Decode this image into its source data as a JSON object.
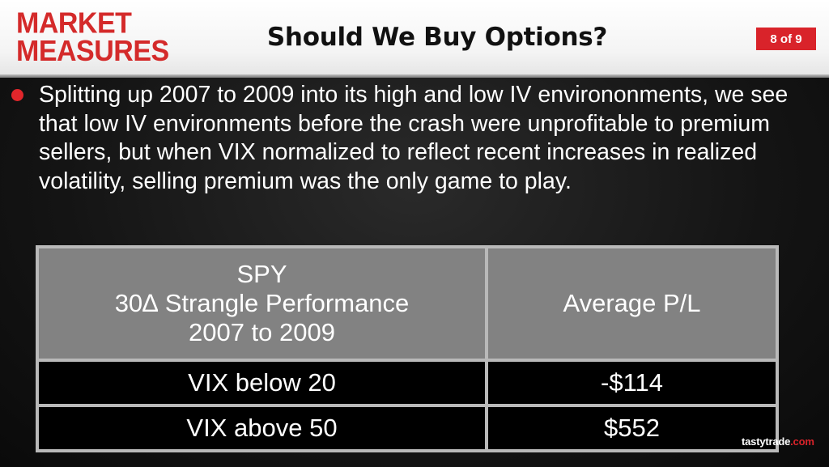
{
  "header": {
    "logo_line1": "MARKET",
    "logo_line2": "MEASURES",
    "title": "Should We Buy Options?",
    "page_indicator": "8 of 9"
  },
  "body": {
    "bullet_text": "Splitting up 2007 to 2009 into its high and low IV environonments, we see that low IV environments before the crash were unprofitable to premium sellers, but when VIX normalized to reflect recent increases in realized volatility, selling premium was the only game to play."
  },
  "table": {
    "header_col1_lines": [
      "SPY",
      "30∆ Strangle Performance",
      "2007 to 2009"
    ],
    "header_col2": "Average P/L",
    "rows": [
      {
        "label": "VIX below 20",
        "value": "-$114"
      },
      {
        "label": "VIX above 50",
        "value": "$552"
      }
    ]
  },
  "footer": {
    "watermark_name": "tastytrade",
    "watermark_suffix": ".com"
  },
  "colors": {
    "brand_red": "#d9232a",
    "header_cell": "#828282",
    "data_cell": "#000000"
  }
}
